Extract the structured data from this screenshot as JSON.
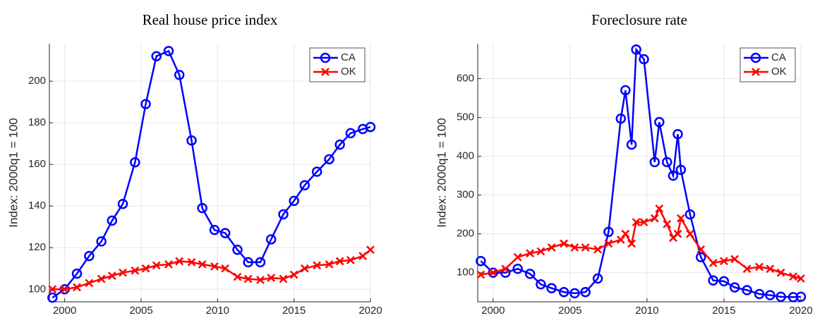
{
  "chart_data": [
    {
      "type": "line",
      "title": "Real house price index",
      "y_label": "Index: 2000q1 = 100",
      "x": [
        1999.2,
        2000,
        2000.8,
        2001.6,
        2002.4,
        2003.1,
        2003.8,
        2004.6,
        2005.3,
        2006.0,
        2006.8,
        2007.5,
        2008.3,
        2009.0,
        2009.8,
        2010.5,
        2011.3,
        2012.0,
        2012.8,
        2013.5,
        2014.3,
        2015.0,
        2015.7,
        2016.5,
        2017.3,
        2018.0,
        2018.7,
        2019.5,
        2020
      ],
      "series": [
        {
          "name": "CA",
          "color": "#0000ff",
          "marker": "o",
          "values": [
            96,
            100,
            107.5,
            116,
            123,
            133,
            141,
            161,
            189,
            212,
            214.5,
            203,
            171.5,
            139,
            128.5,
            127,
            119,
            113,
            113,
            124,
            136,
            142.5,
            150,
            156.5,
            162.5,
            169.5,
            175,
            177,
            178
          ]
        },
        {
          "name": "OK",
          "color": "#ff0000",
          "marker": "x",
          "values": [
            100,
            100,
            101,
            103,
            105,
            106.5,
            108,
            109,
            110,
            111.5,
            112,
            113.5,
            113,
            112,
            111,
            110,
            106,
            105,
            104.5,
            105.5,
            105,
            107,
            110,
            111.5,
            112,
            113.5,
            114,
            116,
            119
          ]
        }
      ],
      "xlim": [
        1999,
        2020
      ],
      "xticks": [
        2000,
        2005,
        2010,
        2015,
        2020
      ],
      "ylim": [
        94,
        218
      ],
      "yticks": [
        100,
        120,
        140,
        160,
        180,
        200
      ],
      "grid": true,
      "legend": "top-right"
    },
    {
      "type": "line",
      "title": "Foreclosure rate",
      "y_label": "Index: 2000q1 = 100",
      "x": [
        1999.2,
        2000,
        2000.8,
        2001.6,
        2002.4,
        2003.1,
        2003.8,
        2004.6,
        2005.3,
        2006.0,
        2006.8,
        2007.5,
        2008.3,
        2008.6,
        2009.0,
        2009.3,
        2009.8,
        2010.5,
        2010.8,
        2011.3,
        2011.7,
        2012.0,
        2012.2,
        2012.8,
        2013.5,
        2014.3,
        2015.0,
        2015.7,
        2016.5,
        2017.3,
        2018.0,
        2018.7,
        2019.5,
        2020
      ],
      "series": [
        {
          "name": "CA",
          "color": "#0000ff",
          "marker": "o",
          "values": [
            130,
            100,
            100,
            110,
            97,
            70,
            60,
            50,
            47,
            50,
            85,
            205,
            497,
            570,
            430,
            675,
            650,
            385,
            488,
            385,
            350,
            457,
            365,
            250,
            140,
            80,
            78,
            62,
            55,
            45,
            42,
            38,
            37,
            38
          ]
        },
        {
          "name": "OK",
          "color": "#ff0000",
          "marker": "x",
          "values": [
            95,
            100,
            110,
            140,
            150,
            155,
            165,
            175,
            165,
            165,
            160,
            175,
            185,
            200,
            175,
            230,
            230,
            240,
            265,
            225,
            190,
            200,
            240,
            200,
            160,
            125,
            130,
            135,
            110,
            115,
            110,
            100,
            90,
            85
          ]
        }
      ],
      "xlim": [
        1999,
        2020
      ],
      "xticks": [
        2000,
        2005,
        2010,
        2015,
        2020
      ],
      "ylim": [
        25,
        690
      ],
      "yticks": [
        100,
        200,
        300,
        400,
        500,
        600
      ],
      "grid": true,
      "legend": "top-right"
    }
  ]
}
